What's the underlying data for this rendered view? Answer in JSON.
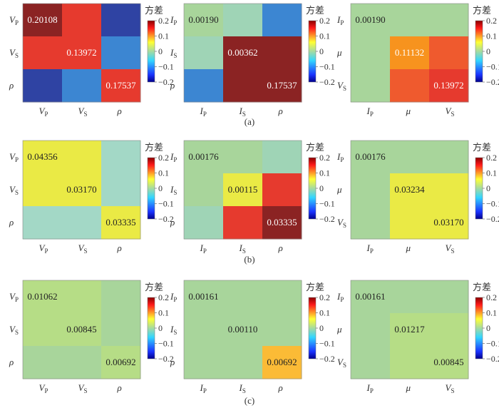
{
  "figure": {
    "colorbar": {
      "title": "方差",
      "range": [
        -0.2,
        0.2
      ],
      "ticks": [
        "0.2",
        "0.1",
        "0",
        "−0.1",
        "−0.2"
      ]
    },
    "palette": {
      "dark_red": "#8b2323",
      "red": "#e63a2e",
      "orange_red": "#ef5a2e",
      "orange": "#f7931e",
      "amber": "#fbbb36",
      "yellow": "#eaea45",
      "light_green": "#a8d59b",
      "pale_green": "#b6dd86",
      "mint": "#9fd4b6",
      "cyan_green": "#a3d8c6",
      "blue": "#3c86d2",
      "navy": "#2f43a3"
    }
  },
  "chart_data": [
    {
      "type": "heatmap",
      "id": "a1",
      "row": "a",
      "x_ticks": [
        "V_P",
        "V_S",
        "ρ"
      ],
      "y_ticks": [
        "V_P",
        "V_S",
        "ρ"
      ],
      "colors": [
        [
          "dark_red",
          "red",
          "navy"
        ],
        [
          "red",
          "red",
          "blue"
        ],
        [
          "navy",
          "blue",
          "red"
        ]
      ],
      "diag_values": [
        "0.20108",
        "0.13972",
        "0.17537"
      ],
      "diag_label_color": [
        "#ffffff",
        "#ffffff",
        "#ffffff"
      ]
    },
    {
      "type": "heatmap",
      "id": "a2",
      "row": "a",
      "x_ticks": [
        "I_P",
        "I_S",
        "ρ"
      ],
      "y_ticks": [
        "I_P",
        "I_S",
        "ρ"
      ],
      "colors": [
        [
          "light_green",
          "mint",
          "blue"
        ],
        [
          "mint",
          "dark_red",
          "dark_red"
        ],
        [
          "blue",
          "dark_red",
          "dark_red"
        ]
      ],
      "diag_values": [
        "0.00190",
        "0.00362",
        "0.17537"
      ],
      "diag_label_color": [
        "#222222",
        "#ffffff",
        "#ffffff"
      ]
    },
    {
      "type": "heatmap",
      "id": "a3",
      "row": "a",
      "x_ticks": [
        "I_P",
        "μ",
        "V_S"
      ],
      "y_ticks": [
        "I_P",
        "μ",
        "V_S"
      ],
      "colors": [
        [
          "light_green",
          "light_green",
          "light_green"
        ],
        [
          "light_green",
          "orange",
          "orange_red"
        ],
        [
          "light_green",
          "orange_red",
          "red"
        ]
      ],
      "diag_values": [
        "0.00190",
        "0.11132",
        "0.13972"
      ],
      "diag_label_color": [
        "#222222",
        "#ffffff",
        "#ffffff"
      ]
    },
    {
      "type": "heatmap",
      "id": "b1",
      "row": "b",
      "x_ticks": [
        "V_P",
        "V_S",
        "ρ"
      ],
      "y_ticks": [
        "V_P",
        "V_S",
        "ρ"
      ],
      "colors": [
        [
          "yellow",
          "yellow",
          "cyan_green"
        ],
        [
          "yellow",
          "yellow",
          "cyan_green"
        ],
        [
          "cyan_green",
          "cyan_green",
          "yellow"
        ]
      ],
      "diag_values": [
        "0.04356",
        "0.03170",
        "0.03335"
      ],
      "diag_label_color": [
        "#222222",
        "#222222",
        "#222222"
      ]
    },
    {
      "type": "heatmap",
      "id": "b2",
      "row": "b",
      "x_ticks": [
        "I_P",
        "I_S",
        "ρ"
      ],
      "y_ticks": [
        "I_P",
        "I_S",
        "ρ"
      ],
      "colors": [
        [
          "light_green",
          "light_green",
          "mint"
        ],
        [
          "light_green",
          "yellow",
          "red"
        ],
        [
          "mint",
          "red",
          "dark_red"
        ]
      ],
      "diag_values": [
        "0.00176",
        "0.00115",
        "0.03335"
      ],
      "diag_label_color": [
        "#222222",
        "#222222",
        "#ffffff"
      ]
    },
    {
      "type": "heatmap",
      "id": "b3",
      "row": "b",
      "x_ticks": [
        "I_P",
        "μ",
        "V_S"
      ],
      "y_ticks": [
        "I_P",
        "μ",
        "V_S"
      ],
      "colors": [
        [
          "light_green",
          "light_green",
          "light_green"
        ],
        [
          "light_green",
          "yellow",
          "yellow"
        ],
        [
          "light_green",
          "yellow",
          "yellow"
        ]
      ],
      "diag_values": [
        "0.00176",
        "0.03234",
        "0.03170"
      ],
      "diag_label_color": [
        "#222222",
        "#222222",
        "#222222"
      ]
    },
    {
      "type": "heatmap",
      "id": "c1",
      "row": "c",
      "x_ticks": [
        "V_P",
        "V_S",
        "ρ"
      ],
      "y_ticks": [
        "V_P",
        "V_S",
        "ρ"
      ],
      "colors": [
        [
          "pale_green",
          "pale_green",
          "light_green"
        ],
        [
          "pale_green",
          "pale_green",
          "light_green"
        ],
        [
          "light_green",
          "light_green",
          "pale_green"
        ]
      ],
      "diag_values": [
        "0.01062",
        "0.00845",
        "0.00692"
      ],
      "diag_label_color": [
        "#222222",
        "#222222",
        "#222222"
      ]
    },
    {
      "type": "heatmap",
      "id": "c2",
      "row": "c",
      "x_ticks": [
        "I_P",
        "I_S",
        "ρ"
      ],
      "y_ticks": [
        "I_P",
        "I_S",
        "ρ"
      ],
      "colors": [
        [
          "light_green",
          "light_green",
          "light_green"
        ],
        [
          "light_green",
          "light_green",
          "light_green"
        ],
        [
          "light_green",
          "light_green",
          "amber"
        ]
      ],
      "diag_values": [
        "0.00161",
        "0.00110",
        "0.00692"
      ],
      "diag_label_color": [
        "#222222",
        "#222222",
        "#222222"
      ]
    },
    {
      "type": "heatmap",
      "id": "c3",
      "row": "c",
      "x_ticks": [
        "I_P",
        "μ",
        "V_S"
      ],
      "y_ticks": [
        "I_P",
        "μ",
        "V_S"
      ],
      "colors": [
        [
          "light_green",
          "light_green",
          "light_green"
        ],
        [
          "light_green",
          "pale_green",
          "pale_green"
        ],
        [
          "light_green",
          "pale_green",
          "pale_green"
        ]
      ],
      "diag_values": [
        "0.00161",
        "0.01217",
        "0.00845"
      ],
      "diag_label_color": [
        "#222222",
        "#222222",
        "#222222"
      ]
    }
  ],
  "captions": [
    "(a)",
    "(b)",
    "(c)"
  ]
}
